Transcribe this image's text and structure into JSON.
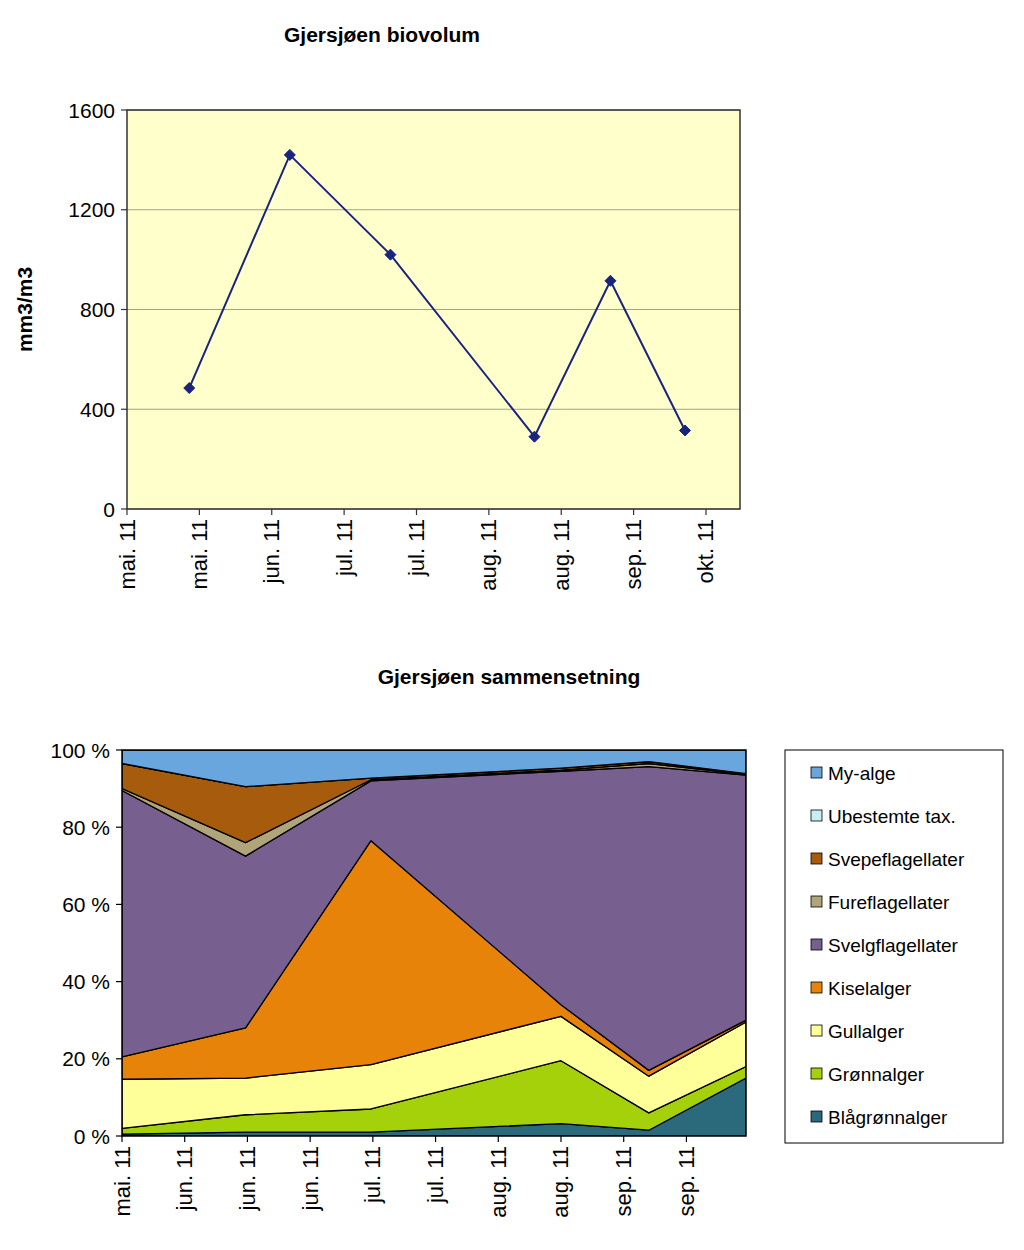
{
  "chart_data": [
    {
      "type": "line",
      "title": "Gjersjøen biovolum",
      "y_label": "mm3/m3",
      "x": [
        0.86,
        2.25,
        3.64,
        5.63,
        6.68,
        7.71
      ],
      "xlim": [
        0,
        8.47
      ],
      "xticks": [
        {
          "value": 0,
          "label": "mai. 11"
        },
        {
          "value": 1,
          "label": "mai. 11"
        },
        {
          "value": 2,
          "label": "jun. 11"
        },
        {
          "value": 3,
          "label": "jul. 11"
        },
        {
          "value": 4,
          "label": "jul. 11"
        },
        {
          "value": 5,
          "label": "aug. 11"
        },
        {
          "value": 6,
          "label": "aug. 11"
        },
        {
          "value": 7,
          "label": "sep. 11"
        },
        {
          "value": 8,
          "label": "okt. 11"
        }
      ],
      "ylim": [
        0,
        1600
      ],
      "yticks": [
        0,
        400,
        800,
        1200,
        1600
      ],
      "grid": true,
      "series": [
        {
          "color": "#1a237e",
          "marker": "diamond",
          "line_style": "solid",
          "values": [
            485,
            1420,
            1020,
            290,
            915,
            315
          ]
        }
      ]
    },
    {
      "type": "area",
      "stacked": true,
      "title": "Gjersjøen sammensetning",
      "x": [
        0,
        1.97,
        3.97,
        7.0,
        8.4,
        9.95
      ],
      "xlim": [
        0,
        9.95
      ],
      "xticks": [
        {
          "value": 0,
          "label": "mai. 11"
        },
        {
          "value": 1,
          "label": "jun. 11"
        },
        {
          "value": 2,
          "label": "jun. 11"
        },
        {
          "value": 3,
          "label": "jun. 11"
        },
        {
          "value": 4,
          "label": "jul. 11"
        },
        {
          "value": 5,
          "label": "jul. 11"
        },
        {
          "value": 6,
          "label": "aug. 11"
        },
        {
          "value": 7,
          "label": "aug. 11"
        },
        {
          "value": 8,
          "label": "sep. 11"
        },
        {
          "value": 9,
          "label": "sep. 11"
        }
      ],
      "ylim": [
        0,
        100
      ],
      "yticks": [
        {
          "value": 0,
          "label": "0 %"
        },
        {
          "value": 20,
          "label": "20 %"
        },
        {
          "value": 40,
          "label": "40 %"
        },
        {
          "value": 60,
          "label": "60 %"
        },
        {
          "value": 80,
          "label": "80 %"
        },
        {
          "value": 100,
          "label": "100 %"
        }
      ],
      "grid": false,
      "legend": "right",
      "series": [
        {
          "name": "Blågrønnalger",
          "color": "#2b6a7c",
          "values": [
            0.5,
            1,
            1,
            3.2,
            1.5,
            15
          ]
        },
        {
          "name": "Grønnalger",
          "color": "#a5d10a",
          "values": [
            1.5,
            4.5,
            6,
            16.3,
            4.5,
            3
          ]
        },
        {
          "name": "Gullalger",
          "color": "#ffff99",
          "values": [
            12.7,
            9.5,
            11.5,
            11.5,
            9.5,
            11.5
          ]
        },
        {
          "name": "Kiselalger",
          "color": "#e8830a",
          "values": [
            5.8,
            13,
            58,
            3,
            1.5,
            0.5
          ]
        },
        {
          "name": "Svelgflagellater",
          "color": "#77608f",
          "values": [
            69,
            44.5,
            15.5,
            60.5,
            78.7,
            63.5
          ]
        },
        {
          "name": "Fureflagellater",
          "color": "#b0a57a",
          "values": [
            0.5,
            3.5,
            0.3,
            0.3,
            0.8,
            0.2
          ]
        },
        {
          "name": "Svepeflagellater",
          "color": "#a65c0c",
          "values": [
            6.5,
            14.5,
            0.4,
            0.5,
            0.5,
            0.2
          ]
        },
        {
          "name": "Ubestemte tax.",
          "color": "#c5eff4",
          "values": [
            0,
            0,
            0,
            0,
            0,
            0
          ]
        },
        {
          "name": "My-alge",
          "color": "#69a6dd",
          "values": [
            3.5,
            9.5,
            7.3,
            4.7,
            3,
            6.1
          ]
        }
      ]
    }
  ]
}
